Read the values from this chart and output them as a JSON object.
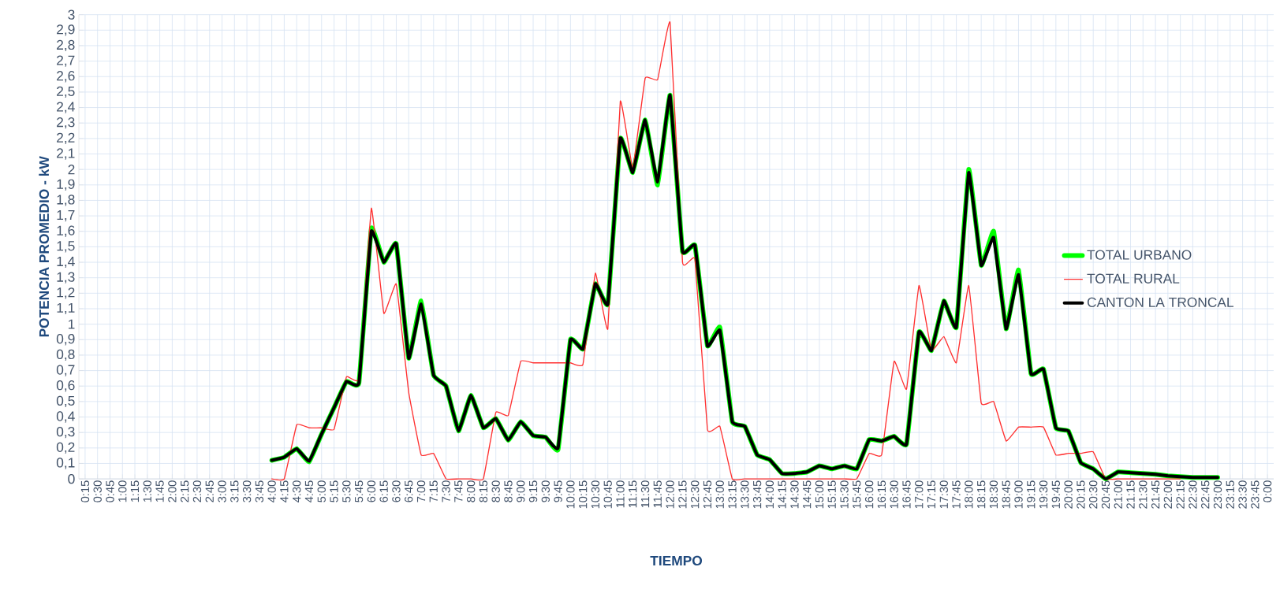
{
  "chart_data": {
    "type": "line",
    "xlabel": "TIEMPO",
    "ylabel": "POTENCIA PROMEDIO - kW",
    "categories": [
      "0:15",
      "0:30",
      "0:45",
      "1:00",
      "1:15",
      "1:30",
      "1:45",
      "2:00",
      "2:15",
      "2:30",
      "2:45",
      "3:00",
      "3:15",
      "3:30",
      "3:45",
      "4:00",
      "4:15",
      "4:30",
      "4:45",
      "5:00",
      "5:15",
      "5:30",
      "5:45",
      "6:00",
      "6:15",
      "6:30",
      "6:45",
      "7:00",
      "7:15",
      "7:30",
      "7:45",
      "8:00",
      "8:15",
      "8:30",
      "8:45",
      "9:00",
      "9:15",
      "9:30",
      "9:45",
      "10:00",
      "10:15",
      "10:30",
      "10:45",
      "11:00",
      "11:15",
      "11:30",
      "11:45",
      "12:00",
      "12:15",
      "12:30",
      "12:45",
      "13:00",
      "13:15",
      "13:30",
      "13:45",
      "14:00",
      "14:15",
      "14:30",
      "14:45",
      "15:00",
      "15:15",
      "15:30",
      "15:45",
      "16:00",
      "16:15",
      "16:30",
      "16:45",
      "17:00",
      "17:15",
      "17:30",
      "17:45",
      "18:00",
      "18:15",
      "18:30",
      "18:45",
      "19:00",
      "19:15",
      "19:30",
      "19:45",
      "20:00",
      "20:15",
      "20:30",
      "20:45",
      "21:00",
      "21:15",
      "21:30",
      "21:45",
      "22:00",
      "22:15",
      "22:30",
      "22:45",
      "23:00",
      "23:15",
      "23:30",
      "23:45",
      "0:00"
    ],
    "series": [
      {
        "name": "TOTAL URBANO",
        "color": "#00ff00",
        "values": [
          null,
          null,
          null,
          null,
          null,
          null,
          null,
          null,
          null,
          null,
          null,
          null,
          null,
          null,
          null,
          0.12,
          0.14,
          0.195,
          0.11,
          0.29,
          0.46,
          0.63,
          0.62,
          1.62,
          1.4,
          1.52,
          0.78,
          1.15,
          0.67,
          0.6,
          0.31,
          0.54,
          0.33,
          0.39,
          0.25,
          0.37,
          0.28,
          0.27,
          0.19,
          0.9,
          0.84,
          1.26,
          1.13,
          2.2,
          1.98,
          2.32,
          1.9,
          2.48,
          1.47,
          1.51,
          0.86,
          0.98,
          0.37,
          0.34,
          0.155,
          0.125,
          0.035,
          0.035,
          0.045,
          0.085,
          0.065,
          0.085,
          0.065,
          0.255,
          0.245,
          0.275,
          0.225,
          0.95,
          0.83,
          1.15,
          0.98,
          2.0,
          1.38,
          1.6,
          0.97,
          1.35,
          0.68,
          0.71,
          0.33,
          0.31,
          0.105,
          0.065,
          0,
          0.045,
          0.04,
          0.035,
          0.03,
          0.02,
          0.015,
          0.01,
          0.01,
          0.01,
          null,
          null,
          null,
          null
        ]
      },
      {
        "name": "TOTAL RURAL",
        "color": "#ff3030",
        "values": [
          null,
          null,
          null,
          null,
          null,
          null,
          null,
          null,
          null,
          null,
          null,
          null,
          null,
          null,
          null,
          0,
          0,
          0.35,
          0.33,
          0.33,
          0.32,
          0.66,
          0.65,
          1.75,
          1.07,
          1.26,
          0.56,
          0.155,
          0.165,
          0,
          0,
          0,
          0,
          0.43,
          0.41,
          0.76,
          0.75,
          0.75,
          0.75,
          0.75,
          0.74,
          1.33,
          0.97,
          2.44,
          2.01,
          2.59,
          2.58,
          2.95,
          1.4,
          1.42,
          0.32,
          0.34,
          0,
          0,
          0,
          0,
          0,
          0,
          0,
          0,
          0,
          0,
          0,
          0.165,
          0.155,
          0.76,
          0.58,
          1.25,
          0.83,
          0.92,
          0.75,
          1.25,
          0.49,
          0.5,
          0.245,
          0.335,
          0.335,
          0.335,
          0.155,
          0.165,
          0.165,
          0.175,
          0,
          0,
          0,
          0,
          0,
          0,
          0,
          null,
          null,
          null,
          null,
          null,
          null,
          null
        ]
      },
      {
        "name": "CANTON LA TRONCAL",
        "color": "#000000",
        "values": [
          null,
          null,
          null,
          null,
          null,
          null,
          null,
          null,
          null,
          null,
          null,
          null,
          null,
          null,
          null,
          0.12,
          0.14,
          0.195,
          0.115,
          0.29,
          0.46,
          0.63,
          0.62,
          1.6,
          1.4,
          1.52,
          0.78,
          1.13,
          0.67,
          0.6,
          0.31,
          0.54,
          0.33,
          0.39,
          0.25,
          0.37,
          0.28,
          0.27,
          0.2,
          0.9,
          0.84,
          1.26,
          1.13,
          2.2,
          1.98,
          2.32,
          1.92,
          2.48,
          1.47,
          1.51,
          0.86,
          0.96,
          0.37,
          0.34,
          0.155,
          0.125,
          0.035,
          0.035,
          0.045,
          0.085,
          0.065,
          0.085,
          0.065,
          0.255,
          0.245,
          0.275,
          0.225,
          0.95,
          0.83,
          1.15,
          0.98,
          1.98,
          1.38,
          1.56,
          0.97,
          1.32,
          0.68,
          0.71,
          0.33,
          0.31,
          0.105,
          0.065,
          0,
          0.045,
          0.04,
          0.035,
          0.03,
          0.02,
          0.015,
          0.01,
          0.01,
          0.01,
          null,
          null,
          null,
          null
        ]
      }
    ],
    "ylim": [
      0,
      3
    ],
    "yticks": [
      0,
      {
        "value": 0.1,
        "label": "0,1"
      },
      {
        "value": 0.2,
        "label": "0,2"
      },
      {
        "value": 0.3,
        "label": "0,3"
      },
      {
        "value": 0.4,
        "label": "0,4"
      },
      {
        "value": 0.5,
        "label": "0,5"
      },
      {
        "value": 0.6,
        "label": "0,6"
      },
      {
        "value": 0.7,
        "label": "0,7"
      },
      {
        "value": 0.8,
        "label": "0,8"
      },
      {
        "value": 0.9,
        "label": "0,9"
      },
      1,
      {
        "value": 1.1,
        "label": "1,1"
      },
      {
        "value": 1.2,
        "label": "1,2"
      },
      {
        "value": 1.3,
        "label": "1,3"
      },
      {
        "value": 1.4,
        "label": "1,4"
      },
      {
        "value": 1.5,
        "label": "1,5"
      },
      {
        "value": 1.6,
        "label": "1,6"
      },
      {
        "value": 1.7,
        "label": "1,7"
      },
      {
        "value": 1.8,
        "label": "1,8"
      },
      {
        "value": 1.9,
        "label": "1,9"
      },
      2,
      {
        "value": 2.1,
        "label": "2,1"
      },
      {
        "value": 2.2,
        "label": "2,2"
      },
      {
        "value": 2.3,
        "label": "2,3"
      },
      {
        "value": 2.4,
        "label": "2,4"
      },
      {
        "value": 2.5,
        "label": "2,5"
      },
      {
        "value": 2.6,
        "label": "2,6"
      },
      {
        "value": 2.7,
        "label": "2,7"
      },
      {
        "value": 2.8,
        "label": "2,8"
      },
      {
        "value": 2.9,
        "label": "2,9"
      },
      3
    ],
    "grid": true,
    "legend": "right"
  }
}
